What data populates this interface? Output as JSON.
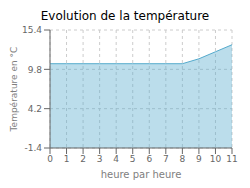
{
  "chart_data": {
    "type": "area",
    "title": "Evolution de la température",
    "xlabel": "heure par heure",
    "ylabel": "Température en °C",
    "x": [
      0,
      1,
      2,
      3,
      4,
      5,
      6,
      7,
      8,
      9,
      10,
      11
    ],
    "values": [
      10.6,
      10.6,
      10.6,
      10.6,
      10.6,
      10.6,
      10.6,
      10.6,
      10.6,
      11.3,
      12.3,
      13.3
    ],
    "color": "#55aacc",
    "xlim": [
      0,
      11
    ],
    "ylim": [
      -1.4,
      15.4
    ],
    "xticks": [
      0,
      1,
      2,
      3,
      4,
      5,
      6,
      7,
      8,
      9,
      10,
      11
    ],
    "yticks": [
      -1.4,
      4.2,
      9.8,
      15.4
    ],
    "grid": true
  }
}
